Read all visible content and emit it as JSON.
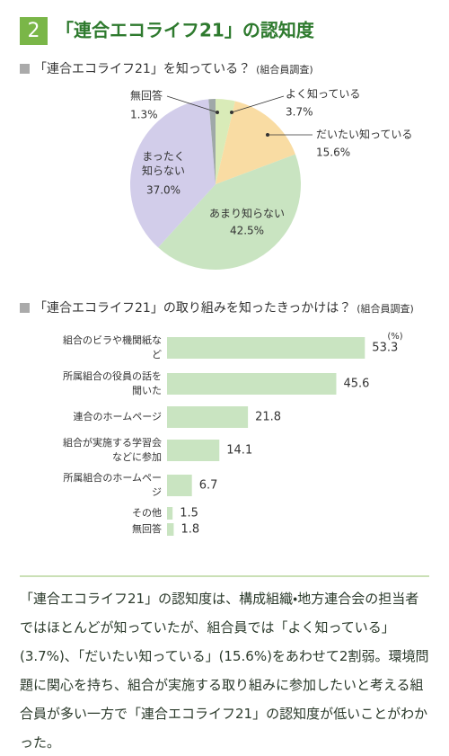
{
  "header": {
    "number": "2",
    "title": "「連合エコライフ21」の認知度"
  },
  "chart_data": [
    {
      "type": "pie",
      "title": "「連合エコライフ21」を知っている？",
      "note": "(組合員調査)",
      "categories": [
        "よく知っている",
        "だいたい知っている",
        "あまり知らない",
        "まったく知らない",
        "無回答"
      ],
      "values": [
        3.7,
        15.6,
        42.5,
        37.0,
        1.3
      ],
      "value_labels": [
        "3.7%",
        "15.6%",
        "42.5%",
        "37.0%",
        "1.3%"
      ],
      "colors": [
        "#d9ebb8",
        "#f9dca3",
        "#c9e4c1",
        "#d2cdea",
        "#9fa8a8"
      ]
    },
    {
      "type": "hbar",
      "title": "「連合エコライフ21」の取り組みを知ったきっかけは？",
      "note": "(組合員調査)",
      "unit": "(%)",
      "categories": [
        "組合のビラや機関紙など",
        "所属組合の役員の話を聞いた",
        "連合のホームページ",
        "組合が実施する学習会などに参加",
        "所属組合のホームページ",
        "その他",
        "無回答"
      ],
      "values": [
        53.3,
        45.6,
        21.8,
        14.1,
        6.7,
        1.5,
        1.8
      ],
      "color": "#c9e4c1",
      "xlim": [
        0,
        60
      ]
    }
  ],
  "body": {
    "text": "「連合エコライフ21」の認知度は、構成組織・地方連合会の担当者ではほとんどが知っていたが、組合員では「よく知っている」(3.7%)、「だいたい知っている」(15.6%)をあわせて2割弱。環境問題に関心を持ち、組合が実施する取り組みに参加したいと考える組合員が多い一方で「連合エコライフ21」の認知度が低いことがわかった。"
  }
}
